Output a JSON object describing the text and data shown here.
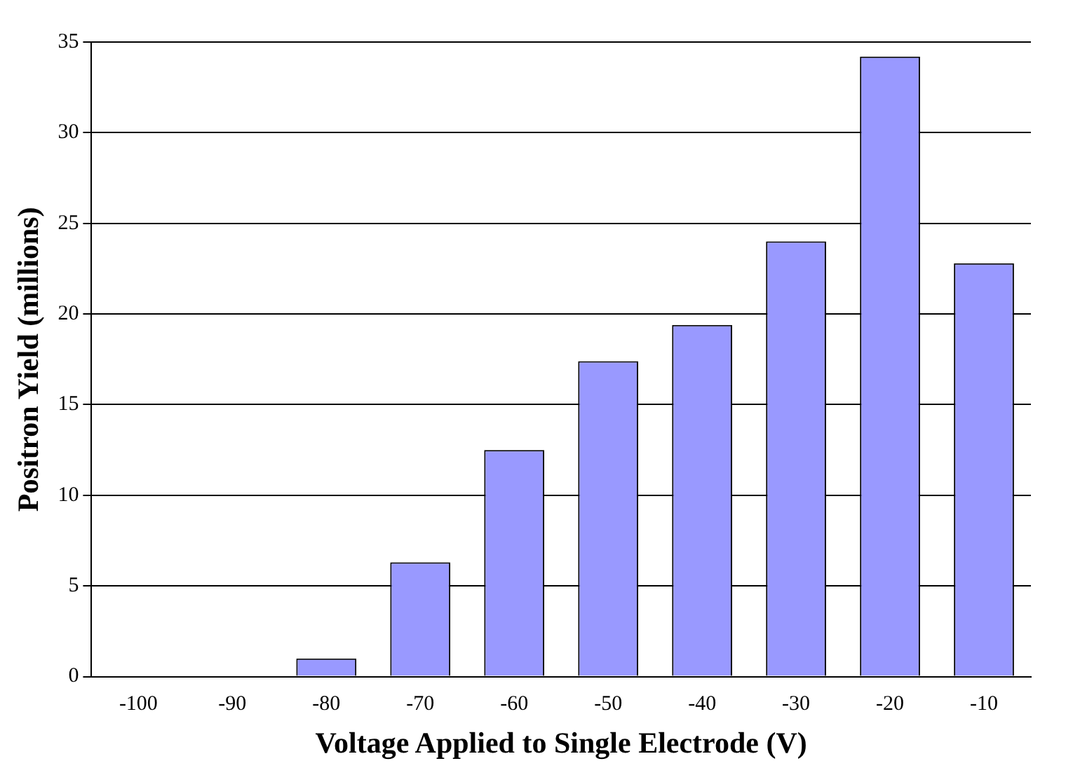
{
  "chart_data": {
    "type": "bar",
    "xlabel": "Voltage Applied to Single Electrode (V)",
    "ylabel": "Positron Yield (millions)",
    "categories": [
      "-100",
      "-90",
      "-80",
      "-70",
      "-60",
      "-50",
      "-40",
      "-30",
      "-20",
      "-10"
    ],
    "values": [
      0,
      0,
      1.0,
      6.3,
      12.5,
      17.4,
      19.4,
      24.0,
      34.2,
      22.8
    ],
    "color": "#9999ff",
    "ylim": [
      0,
      35
    ],
    "yticks": [
      0,
      5,
      10,
      15,
      20,
      25,
      30,
      35
    ],
    "grid": "y",
    "legend": false
  }
}
